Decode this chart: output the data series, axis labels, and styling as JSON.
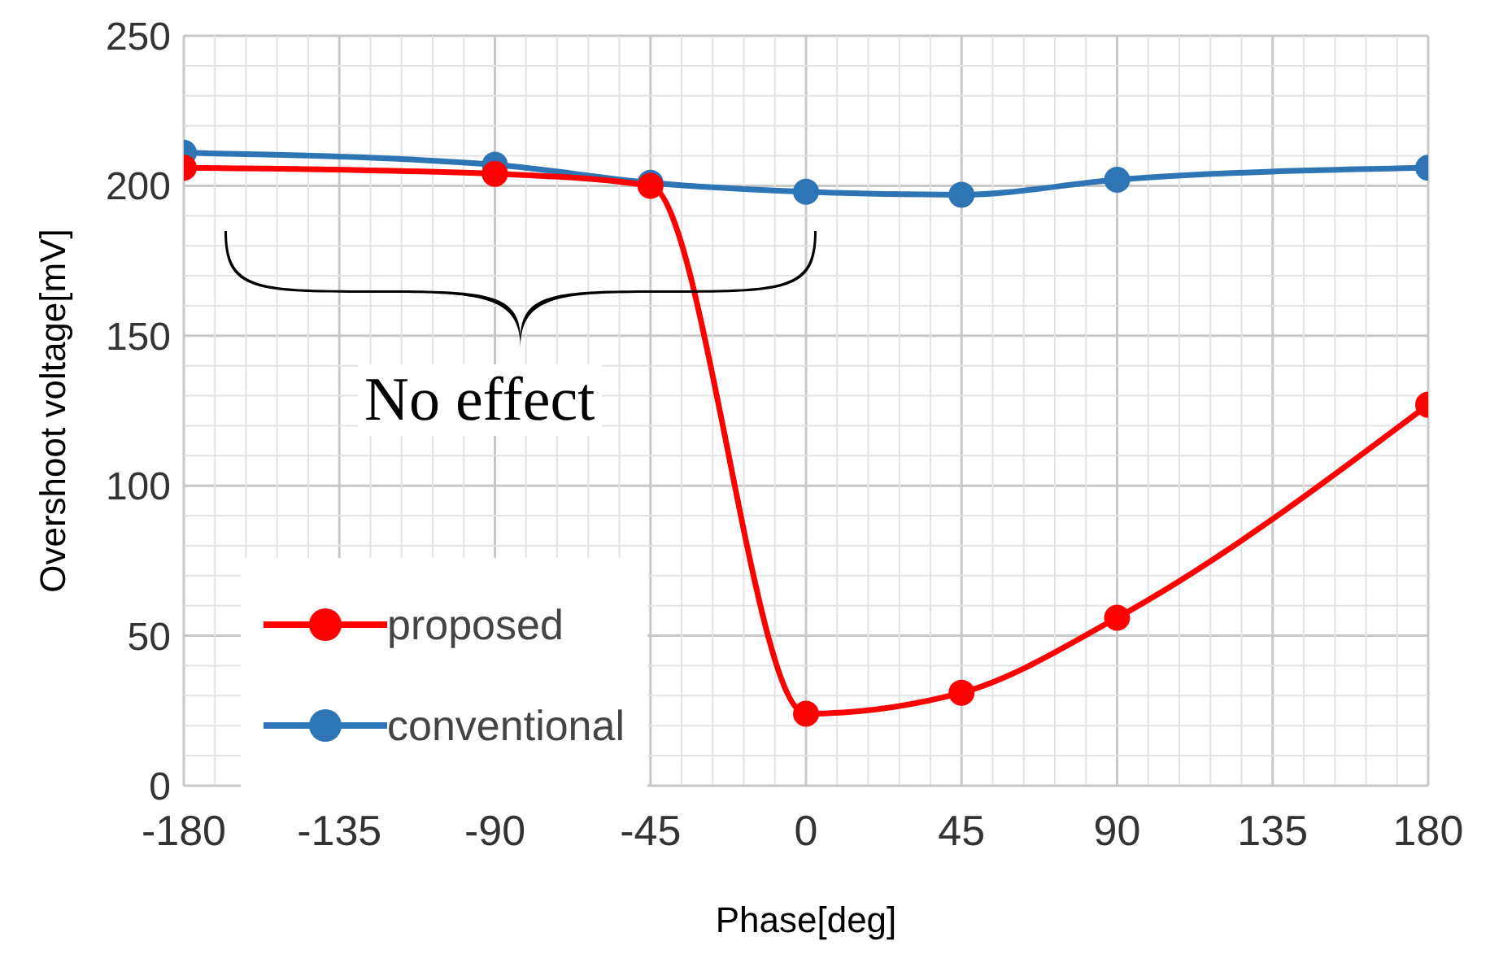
{
  "chart_data": {
    "type": "line",
    "xlabel": "Phase[deg]",
    "ylabel": "Overshoot voltage[mV]",
    "annotations": [
      "No effect"
    ],
    "x": [
      -180,
      -90,
      -45,
      0,
      45,
      90,
      180
    ],
    "series": [
      {
        "name": "proposed",
        "color": "#ff0000",
        "values": [
          206,
          204,
          200,
          24,
          31,
          56,
          127
        ]
      },
      {
        "name": "conventional",
        "color": "#2e75b6",
        "values": [
          211,
          207,
          201,
          198,
          197,
          202,
          206
        ]
      }
    ],
    "xlim": [
      -180,
      180
    ],
    "xticks": [
      -180,
      -135,
      -90,
      -45,
      0,
      45,
      90,
      135,
      180
    ],
    "ylim": [
      0,
      250
    ],
    "yticks": [
      0,
      50,
      100,
      150,
      200,
      250
    ],
    "grid": true,
    "legend": "bottom left",
    "marker": "circle",
    "line_style": "solid"
  }
}
